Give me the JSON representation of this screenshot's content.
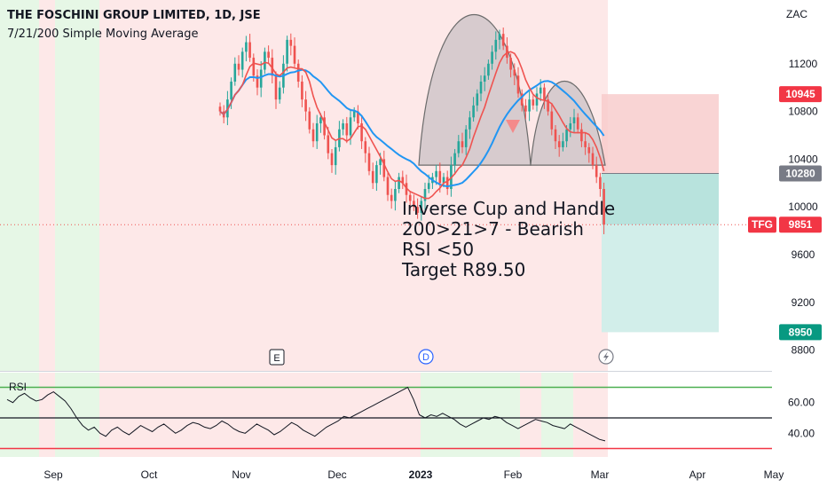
{
  "header": {
    "title": "THE FOSCHINI GROUP LIMITED, 1D, JSE",
    "indicator": "7/21/200 Simple Moving Average"
  },
  "annotation": {
    "lines": [
      "Inverse Cup and Handle",
      "200>21>7 - Bearish",
      "RSI <50",
      "Target R89.50"
    ]
  },
  "markers": {
    "e_label": "E",
    "d_label": "D"
  },
  "colors": {
    "up": "#26a69a",
    "down": "#ef5350",
    "sma7": "#ef5350",
    "sma21": "#2196f3",
    "bg_bear": "#fde8e8",
    "bg_bull": "#e6f7e6",
    "stop_zone": "#f8c9c9",
    "target_zone": "#b8e3dd"
  },
  "chart_data": {
    "type": "candlestick",
    "price_axis": {
      "currency": "ZAC",
      "ticks": [
        11200,
        10800,
        10400,
        10000,
        9600,
        9200,
        8800
      ],
      "tick_labels": [
        "11200",
        "10800",
        "10400",
        "10000",
        "9600",
        "9200",
        "8800"
      ],
      "range": [
        8700,
        11600
      ]
    },
    "x_axis": {
      "ticks": [
        "Sep",
        "Oct",
        "Nov",
        "Dec",
        "2023",
        "Feb",
        "Mar",
        "Apr",
        "May"
      ]
    },
    "price_tags": [
      {
        "label": "10945",
        "value": 10945,
        "style": "stop"
      },
      {
        "label": "10280",
        "value": 10280,
        "style": "entry"
      },
      {
        "label": "9851",
        "value": 9851,
        "style": "last",
        "symbol": "TFG"
      },
      {
        "label": "8950",
        "value": 8950,
        "style": "target"
      }
    ],
    "trade_box": {
      "entry": 10280,
      "stop": 10945,
      "target": 8950
    },
    "rsi": {
      "label": "RSI",
      "ticks": [
        60,
        40
      ],
      "tick_labels": [
        "60.00",
        "40.00"
      ],
      "upper_band": 70,
      "lower_band": 30,
      "mid_line": 50,
      "range": [
        28,
        72
      ]
    },
    "closes": [
      10800,
      10750,
      10900,
      11050,
      11200,
      11150,
      11300,
      11380,
      11250,
      11100,
      11000,
      11150,
      11300,
      11250,
      11100,
      10900,
      11000,
      11200,
      11400,
      11350,
      11200,
      11050,
      10900,
      10800,
      10650,
      10550,
      10700,
      10750,
      10600,
      10450,
      10350,
      10500,
      10650,
      10700,
      10600,
      10750,
      10800,
      10700,
      10550,
      10450,
      10300,
      10200,
      10350,
      10400,
      10250,
      10100,
      10050,
      10150,
      10250,
      10200,
      10100,
      10050,
      10000,
      9950,
      10050,
      10150,
      10200,
      10250,
      10300,
      10200,
      10250,
      10150,
      10350,
      10450,
      10550,
      10500,
      10650,
      10750,
      10850,
      10950,
      11050,
      11100,
      11200,
      11300,
      11400,
      11450,
      11350,
      11250,
      11150,
      11100,
      10950,
      10850,
      10800,
      10900,
      10850,
      10950,
      11000,
      10900,
      10800,
      10650,
      10550,
      10500,
      10550,
      10650,
      10700,
      10750,
      10650,
      10550,
      10500,
      10450,
      10350,
      10250,
      10150,
      9851
    ],
    "rsi_values": [
      62,
      60,
      64,
      66,
      63,
      61,
      62,
      65,
      67,
      64,
      61,
      56,
      50,
      45,
      42,
      44,
      40,
      38,
      42,
      44,
      41,
      39,
      42,
      45,
      43,
      41,
      44,
      46,
      43,
      40,
      42,
      45,
      47,
      46,
      44,
      43,
      45,
      48,
      46,
      43,
      41,
      40,
      43,
      46,
      44,
      42,
      39,
      41,
      44,
      47,
      45,
      42,
      40,
      38,
      41,
      44,
      46,
      48,
      51,
      50,
      52,
      54,
      56,
      58,
      60,
      62,
      64,
      66,
      68,
      70,
      62,
      52,
      50,
      52,
      51,
      53,
      51,
      49,
      46,
      44,
      46,
      48,
      50,
      49,
      51,
      50,
      47,
      45,
      43,
      45,
      47,
      49,
      48,
      47,
      45,
      44,
      43,
      46,
      44,
      42,
      40,
      38,
      36,
      35
    ]
  }
}
